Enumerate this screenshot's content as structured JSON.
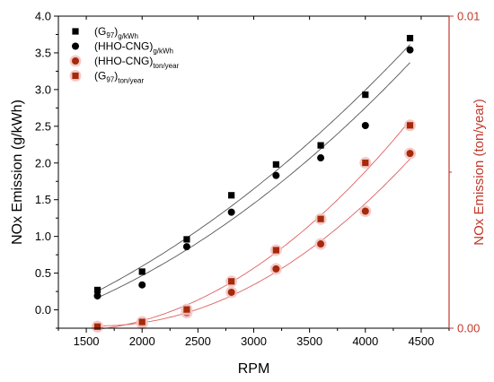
{
  "chart_data": {
    "type": "scatter",
    "xlabel": "RPM",
    "ylabel": "NOx Emission (g/kWh)",
    "ylabel_right": "NOx Emission (ton/year)",
    "xlim": [
      1250,
      4750
    ],
    "ylim": [
      -0.25,
      4.0
    ],
    "ylim_right": [
      0.0,
      0.01
    ],
    "x_ticks": [
      "1500",
      "2000",
      "2500",
      "3000",
      "3500",
      "4000",
      "4500"
    ],
    "y_ticks": [
      "0.0",
      "0.5",
      "1.0",
      "1.5",
      "2.0",
      "2.5",
      "3.0",
      "3.5",
      "4.0"
    ],
    "y_ticks_right": [
      "0.00",
      "0.01"
    ],
    "grid": false,
    "legend_position": "top-left",
    "x": [
      1600,
      2000,
      2400,
      2800,
      3200,
      3600,
      4000,
      4400
    ],
    "series": [
      {
        "name_main": "(G",
        "name_inner": "97",
        "name_close": ")",
        "name_sub": "g/kWh",
        "axis": "left",
        "marker": "square",
        "color": "#000000",
        "values": [
          0.27,
          0.52,
          0.96,
          1.56,
          1.98,
          2.24,
          2.93,
          3.7
        ]
      },
      {
        "name_main": "(HHO-CNG)",
        "name_inner": "",
        "name_close": "",
        "name_sub": "g/kWh",
        "axis": "left",
        "marker": "circle",
        "color": "#000000",
        "values": [
          0.19,
          0.34,
          0.86,
          1.33,
          1.83,
          2.07,
          2.51,
          3.54
        ]
      },
      {
        "name_main": "(HHO-CNG)",
        "name_inner": "",
        "name_close": "",
        "name_sub": "ton/year",
        "axis": "right",
        "marker": "circle",
        "color": "#a52a0a",
        "values": [
          5e-05,
          0.00015,
          0.0005,
          0.00115,
          0.0019,
          0.0027,
          0.00375,
          0.0056
        ]
      },
      {
        "name_main": "(G",
        "name_inner": "97",
        "name_close": ")",
        "name_sub": "ton/year",
        "axis": "right",
        "marker": "square",
        "color": "#a52a0a",
        "values": [
          5e-05,
          0.0002,
          0.0006,
          0.0015,
          0.0025,
          0.0035,
          0.0053,
          0.0065
        ]
      }
    ],
    "colors": {
      "left_axis": "#000000",
      "right_axis": "#c0392b",
      "fit_black": "#555555",
      "fit_red": "#e06060",
      "marker_halo": "#f4c4c4"
    }
  }
}
